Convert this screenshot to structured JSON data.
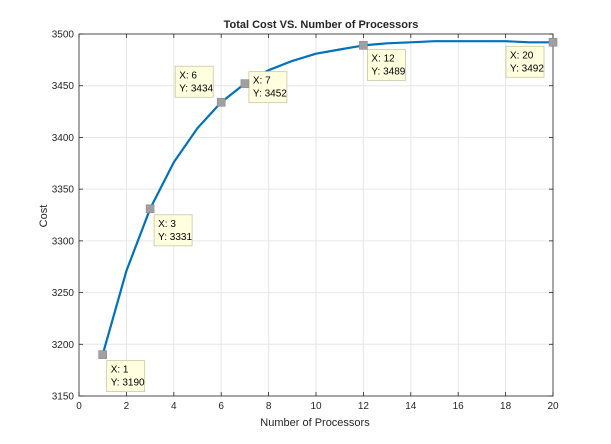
{
  "chart_data": {
    "type": "line",
    "title": "Total Cost VS. Number of Processors",
    "xlabel": "Number of Processors",
    "ylabel": "Cost",
    "xlim": [
      0,
      20
    ],
    "ylim": [
      3150,
      3500
    ],
    "xticks": [
      0,
      2,
      4,
      6,
      8,
      10,
      12,
      14,
      16,
      18,
      20
    ],
    "yticks": [
      3150,
      3200,
      3250,
      3300,
      3350,
      3400,
      3450,
      3500
    ],
    "grid": true,
    "series": [
      {
        "color": "#0072bd",
        "x": [
          1,
          2,
          3,
          4,
          5,
          6,
          7,
          8,
          9,
          10,
          11,
          12,
          13,
          14,
          15,
          16,
          17,
          18,
          19,
          20
        ],
        "y": [
          3190,
          3271,
          3331,
          3376,
          3409,
          3434,
          3452,
          3465,
          3474,
          3481,
          3485,
          3489,
          3491,
          3492,
          3493,
          3493,
          3493,
          3493,
          3492,
          3492
        ]
      }
    ],
    "datatips": [
      {
        "x": 1,
        "y": 3190,
        "xtext": "X: 1",
        "ytext": "Y: 3190"
      },
      {
        "x": 3,
        "y": 3331,
        "xtext": "X: 3",
        "ytext": "Y: 3331"
      },
      {
        "x": 6,
        "y": 3434,
        "xtext": "X: 6",
        "ytext": "Y: 3434"
      },
      {
        "x": 7,
        "y": 3452,
        "xtext": "X: 7",
        "ytext": "Y: 3452"
      },
      {
        "x": 12,
        "y": 3489,
        "xtext": "X: 12",
        "ytext": "Y: 3489"
      },
      {
        "x": 20,
        "y": 3492,
        "xtext": "X: 20",
        "ytext": "Y: 3492"
      }
    ]
  }
}
